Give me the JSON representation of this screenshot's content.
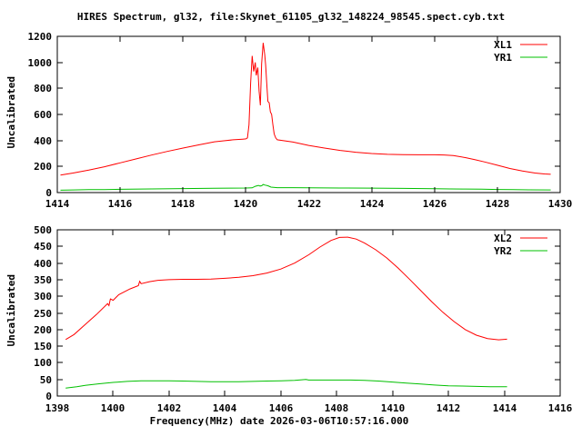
{
  "title": "HIRES Spectrum, gl32, file:Skynet_61105_gl32_148224_98545.spect.cyb.txt",
  "colors": {
    "background": "#ffffff",
    "axis": "#000000",
    "xl_series": "#ff0000",
    "yr_series": "#00c000"
  },
  "chart_data": [
    {
      "type": "line",
      "ylabel": "Uncalibrated",
      "xlabel": "",
      "x_range": [
        1414,
        1430
      ],
      "y_range": [
        0,
        1200
      ],
      "x_ticks": [
        1414,
        1416,
        1418,
        1420,
        1422,
        1424,
        1426,
        1428,
        1430
      ],
      "y_ticks": [
        0,
        200,
        400,
        600,
        800,
        1000,
        1200
      ],
      "grid": false,
      "legend_position": "top-right",
      "series": [
        {
          "name": "XL1",
          "color": "#ff0000",
          "points": [
            [
              1414.1,
              135
            ],
            [
              1414.5,
              150
            ],
            [
              1415,
              172
            ],
            [
              1415.5,
              198
            ],
            [
              1416,
              228
            ],
            [
              1416.5,
              258
            ],
            [
              1417,
              288
            ],
            [
              1417.5,
              316
            ],
            [
              1418,
              342
            ],
            [
              1418.5,
              366
            ],
            [
              1419,
              390
            ],
            [
              1419.3,
              398
            ],
            [
              1419.6,
              405
            ],
            [
              1419.9,
              410
            ],
            [
              1420.0,
              412
            ],
            [
              1420.05,
              420
            ],
            [
              1420.1,
              520
            ],
            [
              1420.15,
              840
            ],
            [
              1420.2,
              1050
            ],
            [
              1420.25,
              930
            ],
            [
              1420.3,
              1000
            ],
            [
              1420.33,
              900
            ],
            [
              1420.38,
              960
            ],
            [
              1420.42,
              780
            ],
            [
              1420.46,
              670
            ],
            [
              1420.5,
              990
            ],
            [
              1420.55,
              1150
            ],
            [
              1420.6,
              1060
            ],
            [
              1420.63,
              980
            ],
            [
              1420.67,
              820
            ],
            [
              1420.7,
              700
            ],
            [
              1420.74,
              690
            ],
            [
              1420.78,
              620
            ],
            [
              1420.82,
              600
            ],
            [
              1420.86,
              520
            ],
            [
              1420.9,
              450
            ],
            [
              1420.95,
              420
            ],
            [
              1421,
              405
            ],
            [
              1421.5,
              388
            ],
            [
              1422,
              362
            ],
            [
              1422.5,
              342
            ],
            [
              1423,
              324
            ],
            [
              1423.5,
              310
            ],
            [
              1424,
              300
            ],
            [
              1424.5,
              294
            ],
            [
              1425,
              291
            ],
            [
              1425.5,
              290
            ],
            [
              1426,
              290
            ],
            [
              1426.3,
              289
            ],
            [
              1426.6,
              285
            ],
            [
              1427,
              268
            ],
            [
              1427.3,
              252
            ],
            [
              1427.6,
              235
            ],
            [
              1428,
              210
            ],
            [
              1428.4,
              185
            ],
            [
              1428.8,
              165
            ],
            [
              1429.2,
              150
            ],
            [
              1429.5,
              143
            ],
            [
              1429.7,
              140
            ]
          ]
        },
        {
          "name": "YR1",
          "color": "#00c000",
          "points": [
            [
              1414.1,
              18
            ],
            [
              1414.5,
              20
            ],
            [
              1415,
              22
            ],
            [
              1415.5,
              23
            ],
            [
              1416,
              25
            ],
            [
              1417,
              28
            ],
            [
              1418,
              31
            ],
            [
              1419,
              33
            ],
            [
              1419.5,
              34
            ],
            [
              1420,
              35
            ],
            [
              1420.2,
              36
            ],
            [
              1420.3,
              48
            ],
            [
              1420.4,
              55
            ],
            [
              1420.45,
              50
            ],
            [
              1420.5,
              52
            ],
            [
              1420.55,
              62
            ],
            [
              1420.6,
              58
            ],
            [
              1420.7,
              52
            ],
            [
              1420.8,
              42
            ],
            [
              1421,
              38
            ],
            [
              1421.5,
              38
            ],
            [
              1422,
              36
            ],
            [
              1423,
              35
            ],
            [
              1424,
              34
            ],
            [
              1425,
              32
            ],
            [
              1426,
              30
            ],
            [
              1426.5,
              28
            ],
            [
              1427,
              27
            ],
            [
              1427.5,
              26
            ],
            [
              1428,
              24
            ],
            [
              1428.5,
              22
            ],
            [
              1429,
              21
            ],
            [
              1429.7,
              20
            ]
          ]
        }
      ]
    },
    {
      "type": "line",
      "ylabel": "Uncalibrated",
      "xlabel": "Frequency(MHz) date 2026-03-06T10:57:16.000",
      "x_range": [
        1398,
        1416
      ],
      "y_range": [
        0,
        500
      ],
      "x_ticks": [
        1398,
        1400,
        1402,
        1404,
        1406,
        1408,
        1410,
        1412,
        1414,
        1416
      ],
      "y_ticks": [
        0,
        50,
        100,
        150,
        200,
        250,
        300,
        350,
        400,
        450,
        500
      ],
      "grid": false,
      "legend_position": "top-right",
      "series": [
        {
          "name": "XL2",
          "color": "#ff0000",
          "points": [
            [
              1398.3,
              170
            ],
            [
              1398.6,
              185
            ],
            [
              1399,
              215
            ],
            [
              1399.4,
              245
            ],
            [
              1399.8,
              278
            ],
            [
              1399.85,
              272
            ],
            [
              1399.9,
              292
            ],
            [
              1400.0,
              288
            ],
            [
              1400.2,
              305
            ],
            [
              1400.6,
              322
            ],
            [
              1400.9,
              332
            ],
            [
              1400.95,
              345
            ],
            [
              1401,
              338
            ],
            [
              1401.3,
              344
            ],
            [
              1401.6,
              348
            ],
            [
              1402,
              350
            ],
            [
              1402.5,
              351
            ],
            [
              1403,
              351
            ],
            [
              1403.5,
              352
            ],
            [
              1404,
              354
            ],
            [
              1404.5,
              357
            ],
            [
              1405,
              362
            ],
            [
              1405.5,
              370
            ],
            [
              1406,
              382
            ],
            [
              1406.5,
              400
            ],
            [
              1407,
              425
            ],
            [
              1407.4,
              448
            ],
            [
              1407.8,
              468
            ],
            [
              1408.1,
              477
            ],
            [
              1408.4,
              478
            ],
            [
              1408.7,
              472
            ],
            [
              1409,
              460
            ],
            [
              1409.4,
              440
            ],
            [
              1409.8,
              415
            ],
            [
              1410.2,
              385
            ],
            [
              1410.6,
              352
            ],
            [
              1411,
              318
            ],
            [
              1411.4,
              284
            ],
            [
              1411.8,
              252
            ],
            [
              1412.2,
              224
            ],
            [
              1412.6,
              200
            ],
            [
              1413,
              183
            ],
            [
              1413.4,
              173
            ],
            [
              1413.8,
              169
            ],
            [
              1414.1,
              171
            ]
          ]
        },
        {
          "name": "YR2",
          "color": "#00c000",
          "points": [
            [
              1398.3,
              24
            ],
            [
              1398.7,
              28
            ],
            [
              1399,
              32
            ],
            [
              1399.5,
              37
            ],
            [
              1400,
              41
            ],
            [
              1400.5,
              44
            ],
            [
              1401,
              46
            ],
            [
              1401.5,
              46
            ],
            [
              1402,
              46
            ],
            [
              1402.5,
              45
            ],
            [
              1403,
              44
            ],
            [
              1403.5,
              43
            ],
            [
              1404,
              43
            ],
            [
              1404.5,
              43
            ],
            [
              1405,
              44
            ],
            [
              1405.5,
              45
            ],
            [
              1406,
              46
            ],
            [
              1406.5,
              47
            ],
            [
              1406.9,
              50
            ],
            [
              1407,
              48
            ],
            [
              1407.5,
              48
            ],
            [
              1408,
              48
            ],
            [
              1408.5,
              48
            ],
            [
              1409,
              47
            ],
            [
              1409.5,
              45
            ],
            [
              1410,
              42
            ],
            [
              1410.5,
              39
            ],
            [
              1411,
              36
            ],
            [
              1411.5,
              33
            ],
            [
              1412,
              31
            ],
            [
              1412.5,
              30
            ],
            [
              1413,
              29
            ],
            [
              1413.5,
              28
            ],
            [
              1414.1,
              28
            ]
          ]
        }
      ]
    }
  ]
}
